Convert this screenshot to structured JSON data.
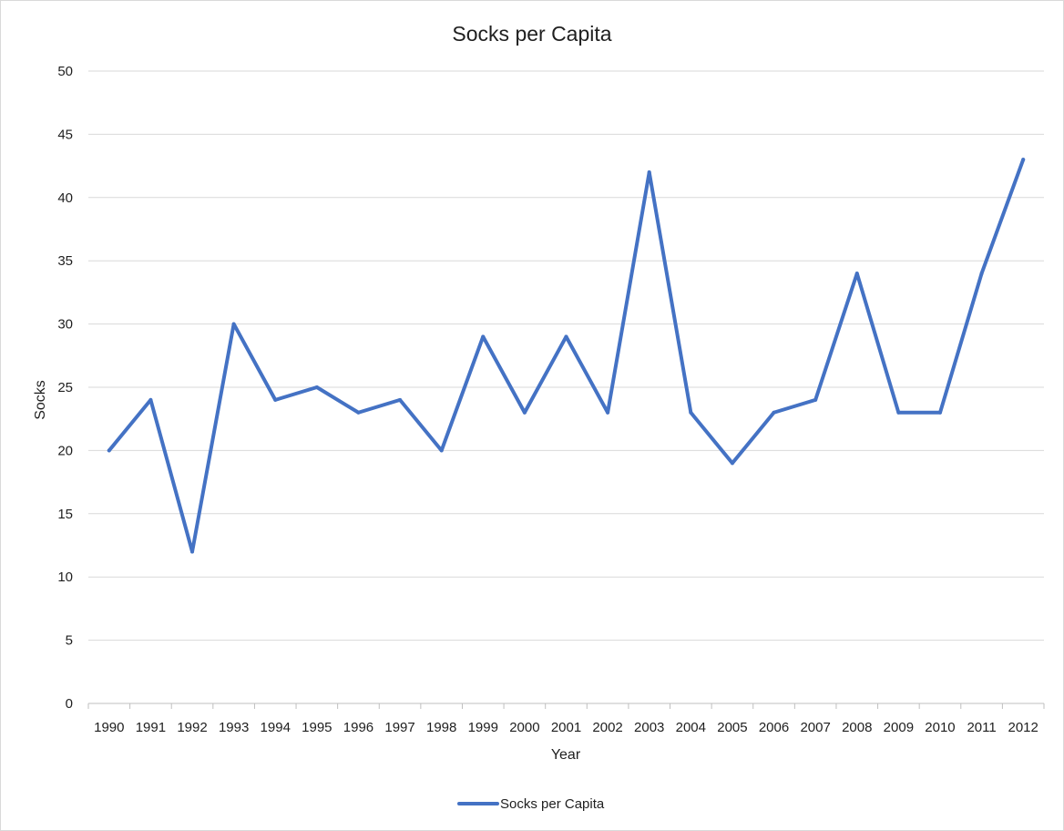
{
  "chart_data": {
    "type": "line",
    "title": "Socks per Capita",
    "xlabel": "Year",
    "ylabel": "Socks",
    "ylim": [
      0,
      50
    ],
    "yticks": [
      "0",
      "5",
      "10",
      "15",
      "20",
      "25",
      "30",
      "35",
      "40",
      "45",
      "50"
    ],
    "grid": true,
    "legend_position": "bottom",
    "categories": [
      "1990",
      "1991",
      "1992",
      "1993",
      "1994",
      "1995",
      "1996",
      "1997",
      "1998",
      "1999",
      "2000",
      "2001",
      "2002",
      "2003",
      "2004",
      "2005",
      "2006",
      "2007",
      "2008",
      "2009",
      "2010",
      "2011",
      "2012"
    ],
    "series": [
      {
        "name": "Socks per Capita",
        "color": "#4472c4",
        "values": [
          20,
          24,
          12,
          30,
          24,
          25,
          23,
          24,
          20,
          29,
          23,
          29,
          23,
          42,
          23,
          19,
          23,
          24,
          34,
          23,
          23,
          34,
          43
        ]
      }
    ]
  }
}
